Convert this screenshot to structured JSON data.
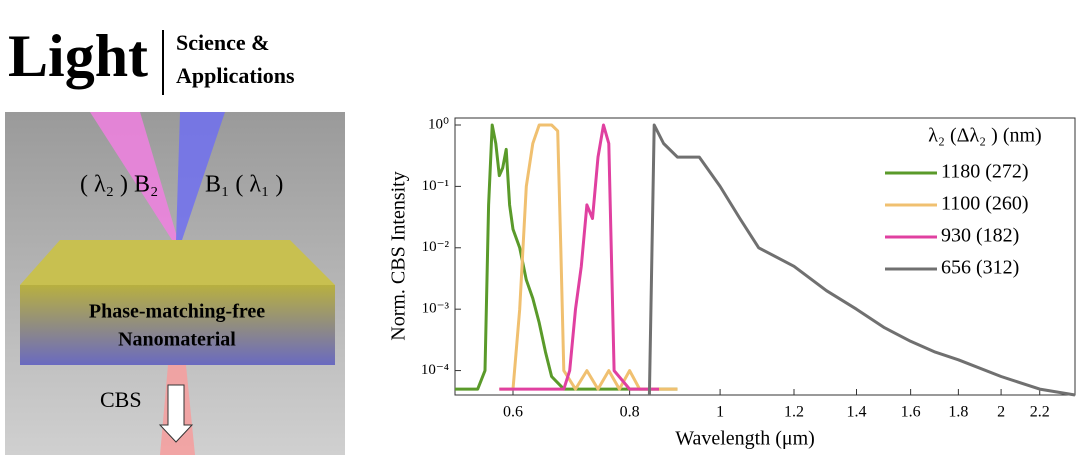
{
  "logo": {
    "name": "Light",
    "line1": "Science &",
    "line2": "Applications"
  },
  "illustration": {
    "beam2": "( λ₂ ) B₂",
    "beam1": "B₁ ( λ₁ )",
    "material1": "Phase-matching-free",
    "material2": "Nanomaterial",
    "output": "CBS"
  },
  "chart_data": {
    "type": "line",
    "xlabel": "Wavelength (μm)",
    "ylabel": "Norm. CBS Intensity",
    "legend_title": "λ₂ (Δλ₂ ) (nm)",
    "xscale": "log",
    "yscale": "log",
    "xlim": [
      0.52,
      2.4
    ],
    "ylim": [
      4e-05,
      1.3
    ],
    "xticks": [
      0.6,
      0.8,
      1,
      1.2,
      1.4,
      1.6,
      1.8,
      2,
      2.2
    ],
    "yticks": [
      {
        "value": 1,
        "label": "10⁰"
      },
      {
        "value": 0.1,
        "label": "10⁻¹"
      },
      {
        "value": 0.01,
        "label": "10⁻²"
      },
      {
        "value": 0.001,
        "label": "10⁻³"
      },
      {
        "value": 0.0001,
        "label": "10⁻⁴"
      }
    ],
    "series": [
      {
        "name": "1180 (272)",
        "color": "#5a9a2a",
        "x": [
          0.52,
          0.55,
          0.56,
          0.565,
          0.57,
          0.575,
          0.58,
          0.585,
          0.59,
          0.595,
          0.6,
          0.61,
          0.62,
          0.63,
          0.64,
          0.65,
          0.66,
          0.68,
          0.75,
          0.9
        ],
        "values": [
          5e-05,
          5e-05,
          0.0001,
          0.05,
          1,
          0.5,
          0.15,
          0.2,
          0.4,
          0.05,
          0.02,
          0.01,
          0.003,
          0.0015,
          0.0006,
          0.0002,
          8e-05,
          5e-05,
          5e-05,
          5e-05
        ]
      },
      {
        "name": "1100 (260)",
        "color": "#f0c070",
        "x": [
          0.58,
          0.6,
          0.61,
          0.62,
          0.63,
          0.64,
          0.66,
          0.67,
          0.675,
          0.68,
          0.7,
          0.72,
          0.74,
          0.76,
          0.78,
          0.8,
          0.82,
          0.9
        ],
        "values": [
          5e-05,
          5e-05,
          0.001,
          0.1,
          0.5,
          1,
          1,
          0.8,
          0.01,
          0.0001,
          5e-05,
          0.0001,
          5e-05,
          0.0001,
          5e-05,
          0.0001,
          5e-05,
          5e-05
        ]
      },
      {
        "name": "930 (182)",
        "color": "#e040a0",
        "x": [
          0.58,
          0.68,
          0.69,
          0.7,
          0.71,
          0.72,
          0.73,
          0.74,
          0.75,
          0.76,
          0.77,
          0.8,
          0.86
        ],
        "values": [
          5e-05,
          5e-05,
          0.0001,
          0.001,
          0.005,
          0.05,
          0.03,
          0.3,
          1,
          0.5,
          0.0001,
          5e-05,
          5e-05
        ]
      },
      {
        "name": "656 (312)",
        "color": "#707070",
        "x": [
          0.84,
          0.85,
          0.87,
          0.9,
          0.95,
          1,
          1.05,
          1.1,
          1.2,
          1.3,
          1.4,
          1.5,
          1.6,
          1.7,
          1.8,
          2,
          2.2,
          2.4
        ],
        "values": [
          4e-05,
          1,
          0.5,
          0.3,
          0.3,
          0.1,
          0.03,
          0.01,
          0.005,
          0.002,
          0.001,
          0.0005,
          0.0003,
          0.0002,
          0.00015,
          8e-05,
          5e-05,
          4e-05
        ]
      }
    ]
  }
}
